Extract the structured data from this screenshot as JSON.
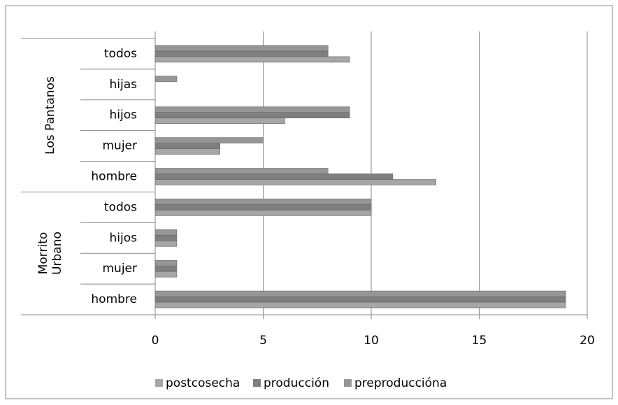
{
  "chart_data": {
    "type": "hbar",
    "groups": [
      {
        "name": "Morrito Urbano",
        "categories": [
          "hombre",
          "mujer",
          "hijos",
          "todos"
        ]
      },
      {
        "name": "Los Pantanos",
        "categories": [
          "hombre",
          "mujer",
          "hijos",
          "hijas",
          "todos"
        ]
      }
    ],
    "series": [
      {
        "name": "postcosecha",
        "color": "#a6a6a6",
        "values": [
          19,
          1,
          1,
          10,
          13,
          3,
          6,
          0,
          9
        ]
      },
      {
        "name": "producción",
        "color": "#7f7f7f",
        "values": [
          19,
          1,
          1,
          10,
          11,
          3,
          9,
          0,
          8
        ]
      },
      {
        "name": "preproduccióna",
        "color": "#969696",
        "values": [
          19,
          1,
          1,
          10,
          8,
          5,
          9,
          1,
          8
        ]
      }
    ],
    "xlim": [
      0,
      20
    ],
    "xticks": [
      0,
      5,
      10,
      15,
      20
    ],
    "grid": true,
    "legend": "bottom"
  }
}
